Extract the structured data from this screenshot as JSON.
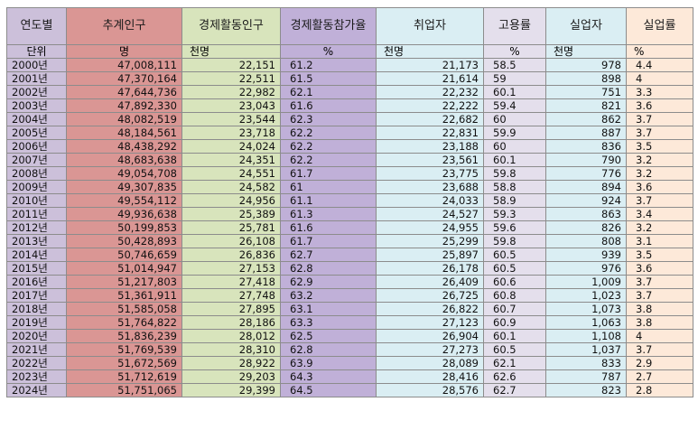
{
  "colors": {
    "col1": "#ccc0da",
    "col2": "#da9694",
    "col3": "#d8e4bc",
    "col4": "#c0b0d8",
    "col5": "#daeef3",
    "col6": "#e4dfec",
    "col7": "#daeef3",
    "col8": "#fde9d9"
  },
  "headers": [
    "연도별",
    "추계인구",
    "경제활동인구",
    "경제활동참가율",
    "취업자",
    "고용률",
    "실업자",
    "실업률"
  ],
  "units": [
    "단위",
    "명",
    "천명",
    "%",
    "천명",
    "%",
    "천명",
    "%"
  ],
  "rows": [
    [
      "2000년",
      "47,008,111",
      "22,151",
      "61.2",
      "21,173",
      "58.5",
      "978",
      "4.4"
    ],
    [
      "2001년",
      "47,370,164",
      "22,511",
      "61.5",
      "21,614",
      "59",
      "898",
      "4"
    ],
    [
      "2002년",
      "47,644,736",
      "22,982",
      "62.1",
      "22,232",
      "60.1",
      "751",
      "3.3"
    ],
    [
      "2003년",
      "47,892,330",
      "23,043",
      "61.6",
      "22,222",
      "59.4",
      "821",
      "3.6"
    ],
    [
      "2004년",
      "48,082,519",
      "23,544",
      "62.3",
      "22,682",
      "60",
      "862",
      "3.7"
    ],
    [
      "2005년",
      "48,184,561",
      "23,718",
      "62.2",
      "22,831",
      "59.9",
      "887",
      "3.7"
    ],
    [
      "2006년",
      "48,438,292",
      "24,024",
      "62.2",
      "23,188",
      "60",
      "836",
      "3.5"
    ],
    [
      "2007년",
      "48,683,638",
      "24,351",
      "62.2",
      "23,561",
      "60.1",
      "790",
      "3.2"
    ],
    [
      "2008년",
      "49,054,708",
      "24,551",
      "61.7",
      "23,775",
      "59.8",
      "776",
      "3.2"
    ],
    [
      "2009년",
      "49,307,835",
      "24,582",
      "61",
      "23,688",
      "58.8",
      "894",
      "3.6"
    ],
    [
      "2010년",
      "49,554,112",
      "24,956",
      "61.1",
      "24,033",
      "58.9",
      "924",
      "3.7"
    ],
    [
      "2011년",
      "49,936,638",
      "25,389",
      "61.3",
      "24,527",
      "59.3",
      "863",
      "3.4"
    ],
    [
      "2012년",
      "50,199,853",
      "25,781",
      "61.6",
      "24,955",
      "59.6",
      "826",
      "3.2"
    ],
    [
      "2013년",
      "50,428,893",
      "26,108",
      "61.7",
      "25,299",
      "59.8",
      "808",
      "3.1"
    ],
    [
      "2014년",
      "50,746,659",
      "26,836",
      "62.7",
      "25,897",
      "60.5",
      "939",
      "3.5"
    ],
    [
      "2015년",
      "51,014,947",
      "27,153",
      "62.8",
      "26,178",
      "60.5",
      "976",
      "3.6"
    ],
    [
      "2016년",
      "51,217,803",
      "27,418",
      "62.9",
      "26,409",
      "60.6",
      "1,009",
      "3.7"
    ],
    [
      "2017년",
      "51,361,911",
      "27,748",
      "63.2",
      "26,725",
      "60.8",
      "1,023",
      "3.7"
    ],
    [
      "2018년",
      "51,585,058",
      "27,895",
      "63.1",
      "26,822",
      "60.7",
      "1,073",
      "3.8"
    ],
    [
      "2019년",
      "51,764,822",
      "28,186",
      "63.3",
      "27,123",
      "60.9",
      "1,063",
      "3.8"
    ],
    [
      "2020년",
      "51,836,239",
      "28,012",
      "62.5",
      "26,904",
      "60.1",
      "1,108",
      "4"
    ],
    [
      "2021년",
      "51,769,539",
      "28,310",
      "62.8",
      "27,273",
      "60.5",
      "1,037",
      "3.7"
    ],
    [
      "2022년",
      "51,672,569",
      "28,922",
      "63.9",
      "28,089",
      "62.1",
      "833",
      "2.9"
    ],
    [
      "2023년",
      "51,712,619",
      "29,203",
      "64.3",
      "28,416",
      "62.6",
      "787",
      "2.7"
    ],
    [
      "2024년",
      "51,751,065",
      "29,399",
      "64.5",
      "28,576",
      "62.7",
      "823",
      "2.8"
    ]
  ]
}
